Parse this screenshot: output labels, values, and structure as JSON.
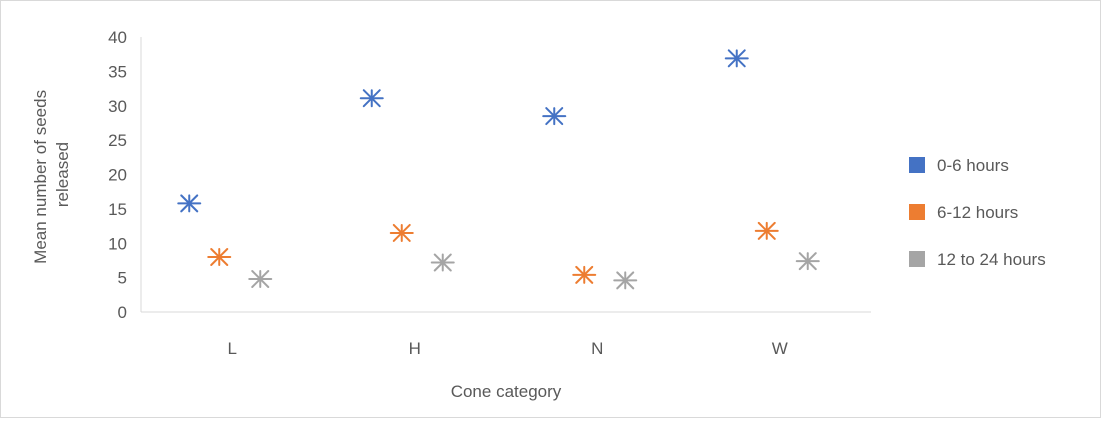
{
  "chart_data": {
    "type": "scatter",
    "title": "",
    "xlabel": "Cone category",
    "ylabel": "Mean number of seeds released",
    "ylabel_lines": [
      "Mean number of seeds",
      "released"
    ],
    "categories": [
      "L",
      "H",
      "N",
      "W"
    ],
    "ylim": [
      0,
      40
    ],
    "yticks": [
      0,
      5,
      10,
      15,
      20,
      25,
      30,
      35,
      40
    ],
    "grid": false,
    "legend_position": "right",
    "marker": "asterisk",
    "series": [
      {
        "name": "0-6 hours",
        "color": "#4472C4",
        "values": [
          15.8,
          31.1,
          28.5,
          36.9
        ]
      },
      {
        "name": "6-12 hours",
        "color": "#ED7D31",
        "values": [
          8.0,
          11.5,
          5.4,
          11.8
        ]
      },
      {
        "name": "12 to 24 hours",
        "color": "#A5A5A5",
        "values": [
          4.8,
          7.2,
          4.6,
          7.4
        ]
      }
    ]
  }
}
